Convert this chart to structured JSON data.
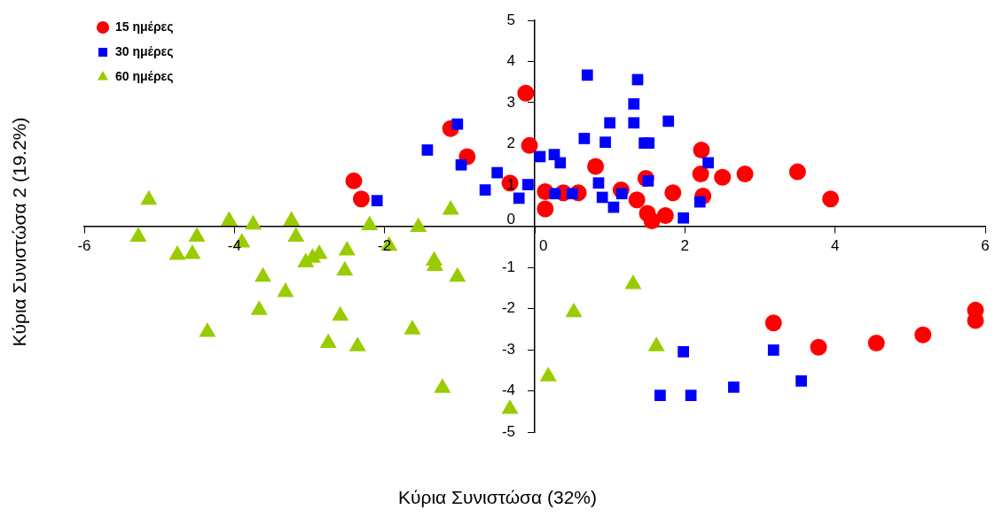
{
  "chart_data": {
    "type": "scatter",
    "xlabel": "Κύρια Συνιστώσα (32%)",
    "ylabel": "Κύρια Συνιστώσα 2 (19.2%)",
    "xlim": [
      -6,
      6
    ],
    "xticks": [
      -6,
      -4,
      -2,
      0,
      2,
      4,
      6
    ],
    "ylim": [
      -5,
      5
    ],
    "yticks": [
      -5,
      -4,
      -3,
      -2,
      -1,
      0,
      1,
      2,
      3,
      4,
      5
    ],
    "grid": false,
    "legend": "top left",
    "series": [
      {
        "name": "15 ημέρες",
        "color": "#ff0000",
        "marker": "circle",
        "x": [
          -2.41,
          -2.31,
          -1.12,
          -0.9,
          -0.33,
          -0.12,
          -0.07,
          0.14,
          0.14,
          0.38,
          0.58,
          0.81,
          1.15,
          1.36,
          1.48,
          1.5,
          1.56,
          1.74,
          1.84,
          2.22,
          2.21,
          2.24,
          2.5,
          2.8,
          3.5,
          3.94,
          3.18,
          3.78,
          4.55,
          5.17,
          5.87,
          5.87
        ],
        "values": [
          1.1,
          0.66,
          2.37,
          1.69,
          1.05,
          3.23,
          1.96,
          0.84,
          0.42,
          0.81,
          0.81,
          1.45,
          0.88,
          0.64,
          1.16,
          0.31,
          0.13,
          0.26,
          0.81,
          1.85,
          1.27,
          0.73,
          1.19,
          1.27,
          1.32,
          0.66,
          -2.35,
          -2.94,
          -2.84,
          -2.64,
          -2.04,
          -2.29
        ]
      },
      {
        "name": "30 ημέρες",
        "color": "#0000ff",
        "marker": "square",
        "x": [
          -2.1,
          -1.43,
          -1.03,
          -0.98,
          -0.66,
          -0.5,
          -0.21,
          -0.09,
          0.07,
          0.26,
          0.34,
          0.27,
          0.5,
          0.7,
          0.66,
          0.94,
          1.0,
          0.85,
          0.9,
          1.16,
          1.05,
          1.32,
          1.32,
          1.37,
          1.46,
          1.52,
          1.51,
          1.78,
          1.98,
          2.2,
          2.31,
          1.98,
          3.18,
          1.67,
          2.08,
          2.65,
          3.55
        ],
        "values": [
          0.62,
          1.85,
          2.48,
          1.49,
          0.88,
          1.3,
          0.68,
          1.01,
          1.69,
          1.74,
          1.54,
          0.79,
          0.79,
          3.67,
          2.13,
          2.04,
          2.51,
          1.05,
          0.7,
          0.79,
          0.46,
          2.97,
          2.51,
          3.56,
          2.02,
          2.02,
          1.1,
          2.55,
          0.2,
          0.59,
          1.54,
          -3.05,
          -3.01,
          -4.11,
          -4.11,
          -3.91,
          -3.76
        ]
      },
      {
        "name": "60 ημέρες",
        "color": "#99cc00",
        "marker": "triangle",
        "x": [
          -5.14,
          -5.28,
          -4.76,
          -4.56,
          -4.5,
          -4.36,
          -4.07,
          -3.9,
          -3.75,
          -3.62,
          -3.67,
          -3.24,
          -3.18,
          -3.32,
          -3.05,
          -2.96,
          -2.87,
          -2.75,
          -2.59,
          -2.5,
          -2.53,
          -2.36,
          -2.2,
          -1.94,
          -1.63,
          -1.55,
          -1.34,
          -1.33,
          -1.23,
          -1.12,
          -1.03,
          -0.33,
          0.18,
          0.52,
          1.31,
          1.62
        ],
        "values": [
          0.64,
          -0.26,
          -0.7,
          -0.68,
          -0.26,
          -2.57,
          0.13,
          -0.4,
          0.04,
          -1.23,
          -2.04,
          0.13,
          -0.26,
          -1.6,
          -0.88,
          -0.77,
          -0.68,
          -2.84,
          -2.18,
          -0.59,
          -1.08,
          -2.92,
          0.02,
          -0.48,
          -2.51,
          -0.02,
          -0.84,
          -0.97,
          -3.93,
          0.4,
          -1.23,
          -4.44,
          -3.65,
          -2.09,
          -1.41,
          -2.92
        ]
      }
    ]
  }
}
